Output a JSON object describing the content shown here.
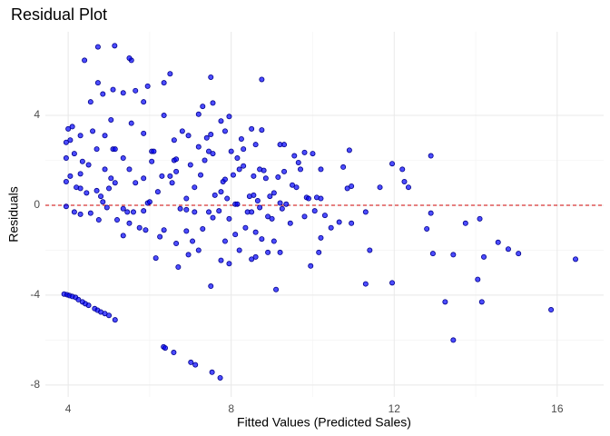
{
  "chart_data": {
    "type": "scatter",
    "title": "Residual Plot",
    "x_label": "Fitted Values (Predicted Sales)",
    "y_label": "Residuals",
    "color": "#0000ff",
    "grid": true,
    "hline": 0,
    "hline_color": "#cc0000",
    "xlim": [
      3.44,
      17.14
    ],
    "xticks": [
      4,
      8,
      12,
      16
    ],
    "ylim": [
      -8.53,
      7.72
    ],
    "yticks": [
      -8,
      -4,
      0,
      4
    ],
    "x": [
      3.9,
      3.97,
      4.03,
      4.1,
      4.18,
      4.25,
      4.35,
      4.42,
      4.5,
      4.65,
      4.72,
      4.8,
      4.9,
      5.0,
      5.15,
      6.34,
      6.38,
      6.59,
      7.01,
      7.12,
      7.53,
      7.73,
      4.73,
      5.14,
      4.4,
      5.55,
      5.5,
      4.73,
      5.1,
      5.95,
      5.65,
      4.85,
      5.35,
      6.35,
      6.5,
      7.5,
      8.75,
      4.55,
      5.85,
      7.3,
      7.55,
      6.35,
      7.2,
      7.75,
      7.95,
      5.05,
      5.55,
      4.0,
      4.1,
      4.3,
      4.6,
      4.9,
      5.85,
      6.8,
      7.4,
      7.85,
      8.5,
      8.75,
      6.95,
      7.5,
      8.25,
      8.6,
      6.6,
      9.2,
      9.3,
      9.8,
      9.55,
      10.0,
      10.9,
      10.75,
      11.95,
      12.2,
      12.9,
      12.25,
      12.35,
      11.65,
      10.85,
      10.95,
      10.2,
      10.1,
      10.2,
      10.05,
      10.3,
      9.85,
      10.65,
      10.95,
      11.3,
      11.4,
      11.3,
      11.95,
      12.8,
      12.9,
      12.95,
      13.45,
      13.75,
      14.1,
      14.2,
      14.55,
      14.8,
      15.05,
      16.45,
      15.85,
      14.15,
      14.05,
      13.25,
      13.45,
      10.15,
      10.2,
      9.95,
      10.45,
      9.1,
      6.05,
      6.05,
      6.1,
      6.3,
      6.2,
      6.5,
      6.6,
      6.65,
      6.65,
      6.55,
      6.75,
      6.9,
      6.9,
      6.65,
      6.35,
      6.15,
      6.7,
      7.1,
      7.1,
      7.25,
      7.35,
      7.45,
      7.3,
      7.45,
      7.55,
      7.6,
      7.75,
      7.7,
      7.8,
      7.85,
      7.9,
      7.5,
      7.75,
      7.85,
      7.95,
      7.95,
      8.05,
      8.1,
      8.15,
      8.2,
      8.3,
      8.35,
      8.4,
      8.45,
      8.5,
      8.55,
      8.6,
      8.65,
      8.7,
      8.75,
      8.8,
      8.85,
      8.9,
      8.95,
      9.0,
      9.05,
      9.15,
      9.2,
      9.25,
      9.3,
      9.35,
      9.45,
      9.5,
      9.6,
      9.65,
      9.7,
      9.8,
      9.9,
      9.2,
      9.05,
      8.9,
      8.6,
      8.5,
      8.1,
      8.2,
      7.2,
      7.05,
      6.95,
      6.25,
      6.9,
      7.0,
      7.2,
      7.55,
      8.3,
      8.55,
      8.7,
      8.0,
      8.15,
      3.95,
      4.05,
      3.95,
      4.15,
      4.35,
      4.3,
      4.5,
      4.7,
      4.9,
      5.1,
      5.15,
      5.05,
      5.15,
      5.35,
      5.65,
      5.85,
      5.5,
      3.95,
      4.05,
      4.2,
      4.3,
      4.45,
      4.7,
      4.8,
      4.85,
      4.55,
      4.3,
      4.15,
      3.95,
      4.75,
      5.2,
      5.35,
      5.45,
      5.6,
      5.75,
      5.9,
      5.95,
      6.0,
      5.5,
      5.85,
      4.95,
      5.35,
      5.0
    ],
    "values": [
      -3.95,
      -3.98,
      -4.02,
      -4.06,
      -4.1,
      -4.2,
      -4.3,
      -4.38,
      -4.45,
      -4.6,
      -4.67,
      -4.75,
      -4.82,
      -4.9,
      -5.1,
      -6.3,
      -6.35,
      -6.55,
      -6.99,
      -7.1,
      -7.43,
      -7.68,
      7.05,
      7.1,
      6.45,
      6.45,
      6.55,
      5.45,
      5.15,
      5.3,
      5.1,
      4.95,
      5.0,
      5.45,
      5.85,
      5.7,
      5.6,
      4.6,
      4.6,
      4.4,
      4.55,
      4.0,
      4.05,
      3.75,
      3.95,
      3.8,
      3.65,
      3.4,
      3.5,
      3.1,
      3.3,
      3.1,
      3.2,
      3.3,
      3.0,
      3.3,
      3.4,
      3.35,
      3.1,
      3.15,
      2.95,
      2.7,
      2.9,
      2.7,
      2.7,
      2.35,
      2.2,
      2.3,
      2.45,
      1.7,
      1.85,
      1.6,
      2.2,
      1.05,
      0.8,
      0.8,
      0.75,
      0.85,
      1.6,
      0.35,
      0.3,
      -0.25,
      -0.45,
      0.35,
      -0.75,
      -0.8,
      -0.3,
      -2.0,
      -3.5,
      -3.45,
      -1.05,
      -0.35,
      -2.15,
      -2.2,
      -0.8,
      -0.6,
      -2.3,
      -1.65,
      -1.95,
      -2.15,
      -2.4,
      -4.65,
      -4.3,
      -3.3,
      -4.3,
      -6.0,
      -2.1,
      -1.45,
      -2.7,
      -1.0,
      -3.75,
      2.4,
      1.95,
      2.4,
      1.3,
      0.6,
      1.3,
      2.0,
      2.05,
      1.5,
      1.0,
      -0.15,
      -0.2,
      -1.15,
      -1.7,
      -1.1,
      -2.35,
      -2.75,
      -0.3,
      0.8,
      1.35,
      2.0,
      2.4,
      -1.05,
      -0.3,
      -0.55,
      0.45,
      0.6,
      -0.25,
      1.05,
      1.15,
      0.3,
      -3.6,
      -2.45,
      -1.6,
      -2.6,
      -0.6,
      1.35,
      0.05,
      0.05,
      1.6,
      1.75,
      -1.0,
      -0.3,
      0.4,
      -0.3,
      0.45,
      -1.2,
      0.2,
      -0.1,
      -1.5,
      1.55,
      1.2,
      -0.5,
      0.4,
      -0.6,
      0.55,
      1.25,
      0.1,
      -0.15,
      1.5,
      0.05,
      -0.8,
      0.9,
      0.8,
      1.9,
      1.6,
      -0.5,
      0.3,
      -2.1,
      -1.6,
      -2.1,
      -2.3,
      -2.4,
      -1.3,
      -2.0,
      -2.0,
      -1.6,
      -2.2,
      -1.4,
      0.3,
      1.8,
      2.6,
      2.3,
      2.5,
      1.3,
      1.6,
      2.4,
      2.1,
      2.8,
      2.9,
      2.1,
      2.3,
      1.95,
      1.4,
      1.8,
      2.5,
      1.6,
      2.5,
      2.5,
      1.2,
      1.0,
      2.1,
      1.0,
      1.2,
      1.6,
      1.05,
      1.3,
      0.8,
      0.75,
      0.55,
      0.65,
      0.4,
      0.15,
      -0.35,
      -0.4,
      -0.3,
      -0.05,
      -0.65,
      -0.65,
      -1.35,
      -0.3,
      -0.3,
      -1.0,
      -1.1,
      0.1,
      0.15,
      -0.8,
      -0.25,
      -0.1,
      -0.15,
      0.75
    ]
  }
}
